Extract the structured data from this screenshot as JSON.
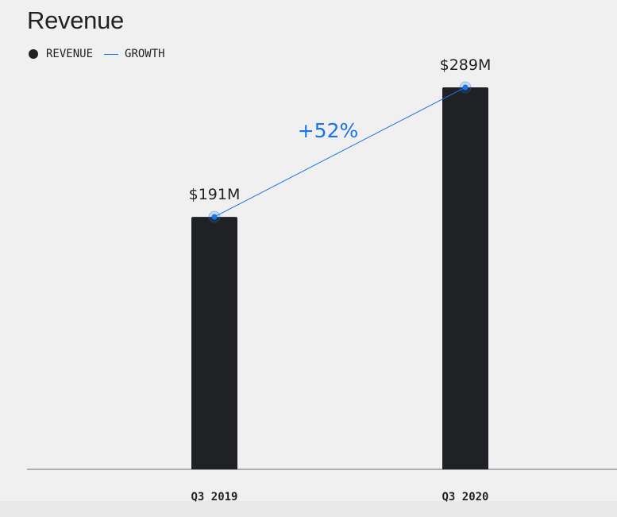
{
  "chart_data": {
    "type": "bar",
    "title": "Revenue",
    "categories": [
      "Q3 2019",
      "Q3 2020"
    ],
    "series": [
      {
        "name": "REVENUE",
        "values": [
          191,
          289
        ],
        "value_labels": [
          "$191M",
          "$289M"
        ]
      },
      {
        "name": "GROWTH",
        "type": "line",
        "annotation": "+52%"
      }
    ],
    "unit": "$M",
    "ylim": [
      0,
      300
    ],
    "grid": false,
    "legend_position": "top-left"
  },
  "colors": {
    "bar": "#1f2124",
    "growth": "#1a73e8",
    "background": "#f0f0f0",
    "axis": "#6b6b6b"
  }
}
